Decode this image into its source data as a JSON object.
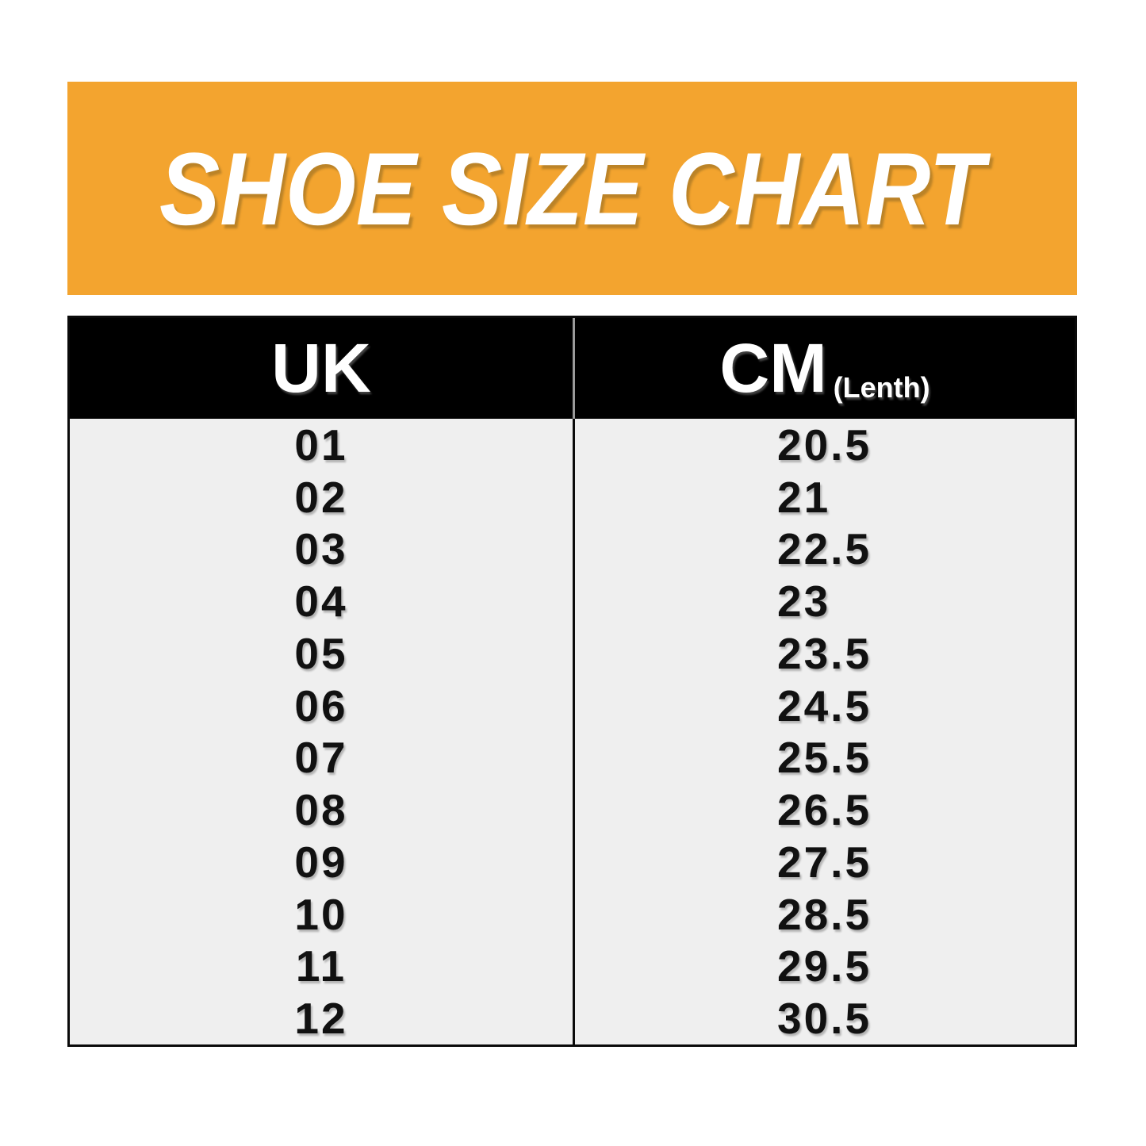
{
  "banner": {
    "title": "SHOE SIZE CHART"
  },
  "table": {
    "header": {
      "uk_label": "UK",
      "cm_label": "CM",
      "cm_note": "(Lenth)"
    },
    "rows": [
      {
        "uk": "01",
        "cm": "20.5"
      },
      {
        "uk": "02",
        "cm": "21"
      },
      {
        "uk": "03",
        "cm": "22.5"
      },
      {
        "uk": "04",
        "cm": "23"
      },
      {
        "uk": "05",
        "cm": "23.5"
      },
      {
        "uk": "06",
        "cm": "24.5"
      },
      {
        "uk": "07",
        "cm": "25.5"
      },
      {
        "uk": "08",
        "cm": "26.5"
      },
      {
        "uk": "09",
        "cm": "27.5"
      },
      {
        "uk": "10",
        "cm": "28.5"
      },
      {
        "uk": "11",
        "cm": "29.5"
      },
      {
        "uk": "12",
        "cm": "30.5"
      }
    ]
  },
  "colors": {
    "banner_background": "#F3A42F",
    "header_background": "#000000",
    "body_background": "#EFEFEF",
    "text_dark": "#111111",
    "text_light": "#FFFFFF"
  },
  "chart_data": {
    "type": "table",
    "title": "SHOE SIZE CHART",
    "columns": [
      "UK",
      "CM (Lenth)"
    ],
    "uk_sizes": [
      "01",
      "02",
      "03",
      "04",
      "05",
      "06",
      "07",
      "08",
      "09",
      "10",
      "11",
      "12"
    ],
    "cm_lengths": [
      20.5,
      21,
      22.5,
      23,
      23.5,
      24.5,
      25.5,
      26.5,
      27.5,
      28.5,
      29.5,
      30.5
    ]
  }
}
